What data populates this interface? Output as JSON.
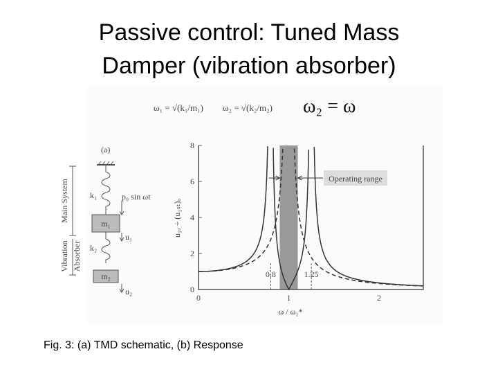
{
  "title": {
    "lines": [
      "Passive control: Tuned Mass",
      "Damper (vibration absorber)"
    ]
  },
  "caption": "Fig. 3: (a) TMD schematic, (b) Response",
  "figure": {
    "formulas": [
      "ω₁ = √(k₁/m₁)",
      "ω₂ = √(k₂/m₂)",
      "ω₂ = ω"
    ],
    "schematic": {
      "panel": "(a)",
      "main": "Main System",
      "absorber": [
        "Vibration",
        "Absorber"
      ],
      "k1": "k₁",
      "force": "p₀ sin ωt",
      "m1": "m₁",
      "u1": "u₁",
      "k2": "k₂",
      "m2": "m₂",
      "u2": "u₂"
    },
    "plot": {
      "ylabel": "u₁ₒ ÷ (u₁ₛₜ)ₒ",
      "xlabel": "ω / ω₁*",
      "yticks": [
        0,
        2,
        4,
        6,
        8
      ],
      "xticks": [
        0,
        1,
        2
      ],
      "annotations": [
        {
          "value": 0.8,
          "label": "0.8"
        },
        {
          "value": 1.25,
          "label": "1.25"
        }
      ],
      "range_label": "Operating range"
    }
  }
}
